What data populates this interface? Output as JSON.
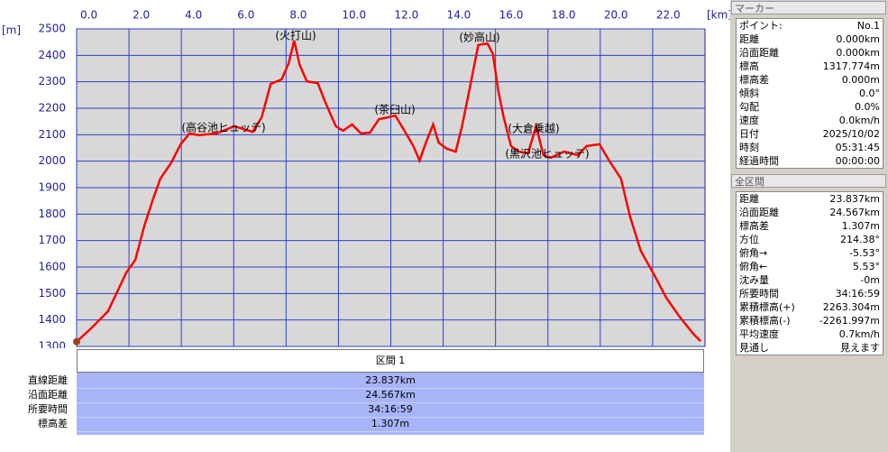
{
  "chart_data": {
    "type": "line",
    "x_unit": "[km]",
    "y_unit": "[m]",
    "xlim": [
      0,
      24
    ],
    "ylim": [
      1300,
      2500
    ],
    "xticks": [
      {
        "value": 0,
        "label": "0.0"
      },
      {
        "value": 2,
        "label": "2.0"
      },
      {
        "value": 4,
        "label": "4.0"
      },
      {
        "value": 6,
        "label": "6.0"
      },
      {
        "value": 8,
        "label": "8.0"
      },
      {
        "value": 10,
        "label": "10.0"
      },
      {
        "value": 12,
        "label": "12.0"
      },
      {
        "value": 14,
        "label": "14.0"
      },
      {
        "value": 16,
        "label": "16.0"
      },
      {
        "value": 18,
        "label": "18.0"
      },
      {
        "value": 20,
        "label": "20.0"
      },
      {
        "value": 22,
        "label": "22.0"
      }
    ],
    "yticks": [
      1300,
      1400,
      1500,
      1600,
      1700,
      1800,
      1900,
      2000,
      2100,
      2200,
      2300,
      2400,
      2500
    ],
    "grid": true,
    "color": "#ff0000",
    "x": [
      0,
      0.52,
      1.2,
      1.9,
      2.24,
      2.59,
      2.93,
      3.2,
      3.62,
      3.97,
      4.31,
      4.66,
      5.34,
      6.03,
      6.72,
      7.07,
      7.41,
      7.83,
      8.1,
      8.31,
      8.52,
      8.79,
      9.21,
      9.48,
      9.9,
      10.17,
      10.52,
      10.86,
      11.2,
      11.55,
      11.9,
      12.17,
      12.52,
      12.86,
      13.1,
      13.34,
      13.62,
      13.83,
      14.14,
      14.48,
      14.72,
      15.0,
      15.34,
      15.69,
      15.9,
      16.1,
      16.31,
      16.59,
      16.9,
      17.24,
      17.55,
      17.83,
      18.1,
      18.62,
      19.14,
      19.48,
      19.97,
      20.34,
      20.79,
      21.14,
      21.55,
      22.07,
      22.52,
      23.0,
      23.55,
      23.83
    ],
    "values": [
      1318,
      1365,
      1433,
      1580,
      1627,
      1757,
      1860,
      1934,
      1995,
      2064,
      2105,
      2098,
      2105,
      2132,
      2111,
      2166,
      2292,
      2309,
      2370,
      2456,
      2364,
      2302,
      2295,
      2227,
      2132,
      2115,
      2139,
      2105,
      2108,
      2159,
      2166,
      2173,
      2115,
      2057,
      2002,
      2070,
      2139,
      2070,
      2047,
      2036,
      2132,
      2268,
      2439,
      2445,
      2405,
      2268,
      2166,
      2057,
      2036,
      2030,
      2132,
      2023,
      2013,
      2036,
      2023,
      2057,
      2064,
      2002,
      1934,
      1791,
      1661,
      1569,
      1484,
      1416,
      1348,
      1320
    ],
    "annotations": [
      "(高谷池ヒュッテ)",
      "(火打山)",
      "(茶臼山)",
      "(妙高山)",
      "(大倉乗越)",
      "(黒沢池ヒュッテ)"
    ]
  },
  "marker": {
    "title": "マーカー",
    "rows": [
      [
        "ポイント:",
        "No.1"
      ],
      [
        "距離",
        "0.000km"
      ],
      [
        "沿面距離",
        "0.000km"
      ],
      [
        "標高",
        "1317.774m"
      ],
      [
        "標高差",
        "0.000m"
      ],
      [
        "傾斜",
        "0.0°"
      ],
      [
        "勾配",
        "0.0%"
      ],
      [
        "速度",
        "0.0km/h"
      ],
      [
        "日付",
        "2025/10/02"
      ],
      [
        "時刻",
        "05:31:45"
      ],
      [
        "経過時間",
        "00:00:00"
      ]
    ]
  },
  "summary": {
    "title": "全区間",
    "rows": [
      [
        "距離",
        "23.837km"
      ],
      [
        "沿面距離",
        "24.567km"
      ],
      [
        "標高差",
        "1.307m"
      ],
      [
        "方位",
        "214.38°"
      ],
      [
        "俯角→",
        "-5.53°"
      ],
      [
        "俯角←",
        "5.53°"
      ],
      [
        "沈み量",
        "-0m"
      ],
      [
        "所要時間",
        "34:16:59"
      ],
      [
        "累積標高(+)",
        "2263.304m"
      ],
      [
        "累積標高(-)",
        "-2261.997m"
      ],
      [
        "平均速度",
        "0.7km/h"
      ],
      [
        "見通し",
        "見えます"
      ]
    ]
  },
  "section": {
    "title": "区間 1",
    "rows": [
      [
        "直線距離",
        "23.837km"
      ],
      [
        "沿面距離",
        "24.567km"
      ],
      [
        "所要時間",
        "34:16:59"
      ],
      [
        "標高差",
        "1.307m"
      ]
    ]
  }
}
